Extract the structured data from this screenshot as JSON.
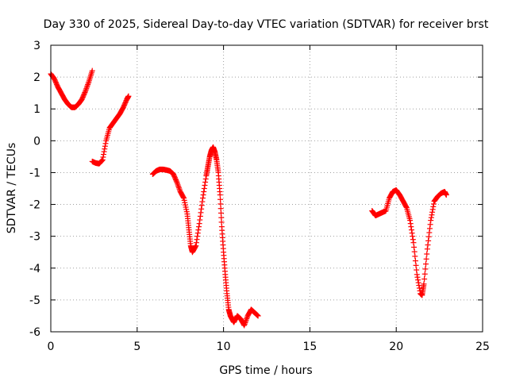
{
  "chart_data": {
    "type": "scatter",
    "title": "Day 330 of 2025, Sidereal Day-to-day VTEC variation (SDTVAR) for receiver brst",
    "xlabel": "GPS time / hours",
    "ylabel": "SDTVAR / TECUs",
    "xlim": [
      0,
      25
    ],
    "ylim": [
      -6,
      3
    ],
    "xticks": [
      0,
      5,
      10,
      15,
      20,
      25
    ],
    "yticks": [
      -6,
      -5,
      -4,
      -3,
      -2,
      -1,
      0,
      1,
      2,
      3
    ],
    "grid": true,
    "marker": "plus",
    "color": "#ff0000",
    "series": [
      {
        "name": "SDTVAR",
        "segments": [
          {
            "x": [
              0.0,
              0.2,
              0.4,
              0.6,
              0.8,
              1.0,
              1.2,
              1.4,
              1.6,
              1.8,
              2.0,
              2.2,
              2.4
            ],
            "y": [
              2.1,
              1.95,
              1.7,
              1.5,
              1.3,
              1.15,
              1.05,
              1.05,
              1.15,
              1.3,
              1.55,
              1.85,
              2.2
            ]
          },
          {
            "x": [
              2.4,
              2.6,
              2.8,
              3.0,
              3.2,
              3.4,
              3.6,
              3.8,
              4.0,
              4.2,
              4.4,
              4.5
            ],
            "y": [
              -0.65,
              -0.7,
              -0.72,
              -0.6,
              0.0,
              0.4,
              0.55,
              0.7,
              0.85,
              1.05,
              1.3,
              1.4
            ]
          },
          {
            "x": [
              5.9,
              6.1,
              6.3,
              6.5,
              6.7,
              6.9,
              7.1,
              7.3,
              7.5,
              7.7,
              7.9,
              8.0,
              8.1,
              8.2,
              8.4,
              8.6,
              8.8,
              9.0,
              9.1,
              9.2,
              9.3,
              9.4,
              9.5,
              9.6,
              9.7,
              9.8,
              9.9,
              10.0,
              10.1,
              10.2,
              10.3,
              10.4,
              10.5,
              10.6,
              10.8,
              11.0,
              11.2,
              11.4,
              11.6,
              11.8,
              12.0
            ],
            "y": [
              -1.05,
              -0.95,
              -0.9,
              -0.9,
              -0.92,
              -0.95,
              -1.05,
              -1.3,
              -1.6,
              -1.8,
              -2.3,
              -2.8,
              -3.3,
              -3.5,
              -3.3,
              -2.6,
              -1.8,
              -1.1,
              -0.8,
              -0.5,
              -0.3,
              -0.2,
              -0.35,
              -0.6,
              -1.0,
              -1.7,
              -2.7,
              -3.5,
              -4.2,
              -4.8,
              -5.3,
              -5.5,
              -5.6,
              -5.7,
              -5.5,
              -5.6,
              -5.8,
              -5.5,
              -5.3,
              -5.4,
              -5.5
            ]
          },
          {
            "x": [
              18.6,
              18.8,
              19.0,
              19.2,
              19.4,
              19.6,
              19.8,
              20.0,
              20.2,
              20.4,
              20.6,
              20.8,
              21.0,
              21.2,
              21.4,
              21.5,
              21.6,
              21.8,
              22.0,
              22.2,
              22.4,
              22.6,
              22.8,
              22.9
            ],
            "y": [
              -2.2,
              -2.35,
              -2.3,
              -2.25,
              -2.2,
              -1.8,
              -1.6,
              -1.55,
              -1.7,
              -1.9,
              -2.1,
              -2.5,
              -3.2,
              -4.2,
              -4.8,
              -4.85,
              -4.5,
              -3.4,
              -2.5,
              -1.9,
              -1.75,
              -1.65,
              -1.6,
              -1.7
            ]
          }
        ]
      }
    ]
  }
}
